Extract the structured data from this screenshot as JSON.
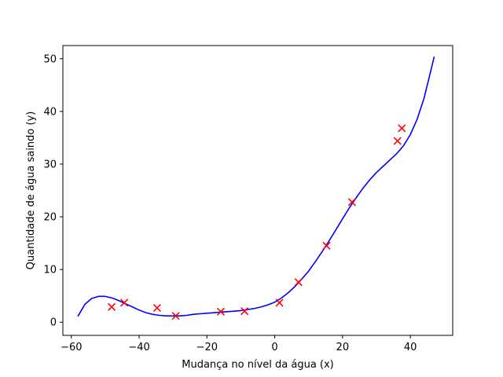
{
  "chart_data": {
    "type": "scatter",
    "title": "",
    "xlabel": "Mudança no nível da água (x)",
    "ylabel": "Quantidade de água saindo (y)",
    "xlim": [
      -62.5,
      52.5
    ],
    "ylim": [
      -2.5,
      52.5
    ],
    "xticks": [
      -60,
      -40,
      -20,
      0,
      20,
      40
    ],
    "xtick_labels": [
      "−60",
      "−40",
      "−20",
      "0",
      "20",
      "40"
    ],
    "yticks": [
      0,
      10,
      20,
      30,
      40,
      50
    ],
    "ytick_labels": [
      "0",
      "10",
      "20",
      "30",
      "40",
      "50"
    ],
    "grid": false,
    "series": [
      {
        "kind": "scatter",
        "marker": "x",
        "color": "#ff0000",
        "points": [
          [
            -48.1,
            2.9
          ],
          [
            -44.4,
            3.7
          ],
          [
            -34.7,
            2.7
          ],
          [
            -29.2,
            1.2
          ],
          [
            -15.9,
            2.0
          ],
          [
            -8.9,
            2.1
          ],
          [
            1.4,
            3.7
          ],
          [
            7.0,
            7.6
          ],
          [
            15.3,
            14.5
          ],
          [
            22.8,
            22.8
          ],
          [
            36.2,
            34.4
          ],
          [
            37.5,
            36.8
          ]
        ]
      },
      {
        "kind": "line",
        "color": "#0000ff",
        "points": [
          [
            -58.0,
            1.2
          ],
          [
            -56.0,
            3.4
          ],
          [
            -54.0,
            4.5
          ],
          [
            -52.0,
            4.9
          ],
          [
            -50.0,
            4.9
          ],
          [
            -48.0,
            4.6
          ],
          [
            -46.0,
            4.1
          ],
          [
            -44.0,
            3.5
          ],
          [
            -42.0,
            2.9
          ],
          [
            -40.0,
            2.3
          ],
          [
            -38.0,
            1.8
          ],
          [
            -36.0,
            1.5
          ],
          [
            -34.0,
            1.3
          ],
          [
            -32.0,
            1.2
          ],
          [
            -30.0,
            1.2
          ],
          [
            -28.0,
            1.2
          ],
          [
            -26.0,
            1.3
          ],
          [
            -24.0,
            1.5
          ],
          [
            -22.0,
            1.6
          ],
          [
            -20.0,
            1.7
          ],
          [
            -18.0,
            1.8
          ],
          [
            -16.0,
            1.9
          ],
          [
            -14.0,
            2.0
          ],
          [
            -12.0,
            2.1
          ],
          [
            -10.0,
            2.2
          ],
          [
            -8.0,
            2.4
          ],
          [
            -6.0,
            2.6
          ],
          [
            -4.0,
            2.9
          ],
          [
            -2.0,
            3.3
          ],
          [
            0.0,
            3.8
          ],
          [
            2.0,
            4.6
          ],
          [
            4.0,
            5.6
          ],
          [
            6.0,
            6.8
          ],
          [
            8.0,
            8.2
          ],
          [
            10.0,
            9.7
          ],
          [
            12.0,
            11.5
          ],
          [
            14.0,
            13.4
          ],
          [
            16.0,
            15.4
          ],
          [
            18.0,
            17.5
          ],
          [
            20.0,
            19.6
          ],
          [
            22.0,
            21.7
          ],
          [
            24.0,
            23.6
          ],
          [
            26.0,
            25.4
          ],
          [
            28.0,
            27.0
          ],
          [
            30.0,
            28.4
          ],
          [
            32.0,
            29.6
          ],
          [
            34.0,
            30.8
          ],
          [
            36.0,
            32.0
          ],
          [
            38.0,
            33.5
          ],
          [
            40.0,
            35.6
          ],
          [
            42.0,
            38.5
          ],
          [
            44.0,
            42.4
          ],
          [
            46.0,
            47.6
          ],
          [
            47.0,
            50.3
          ]
        ]
      }
    ]
  }
}
